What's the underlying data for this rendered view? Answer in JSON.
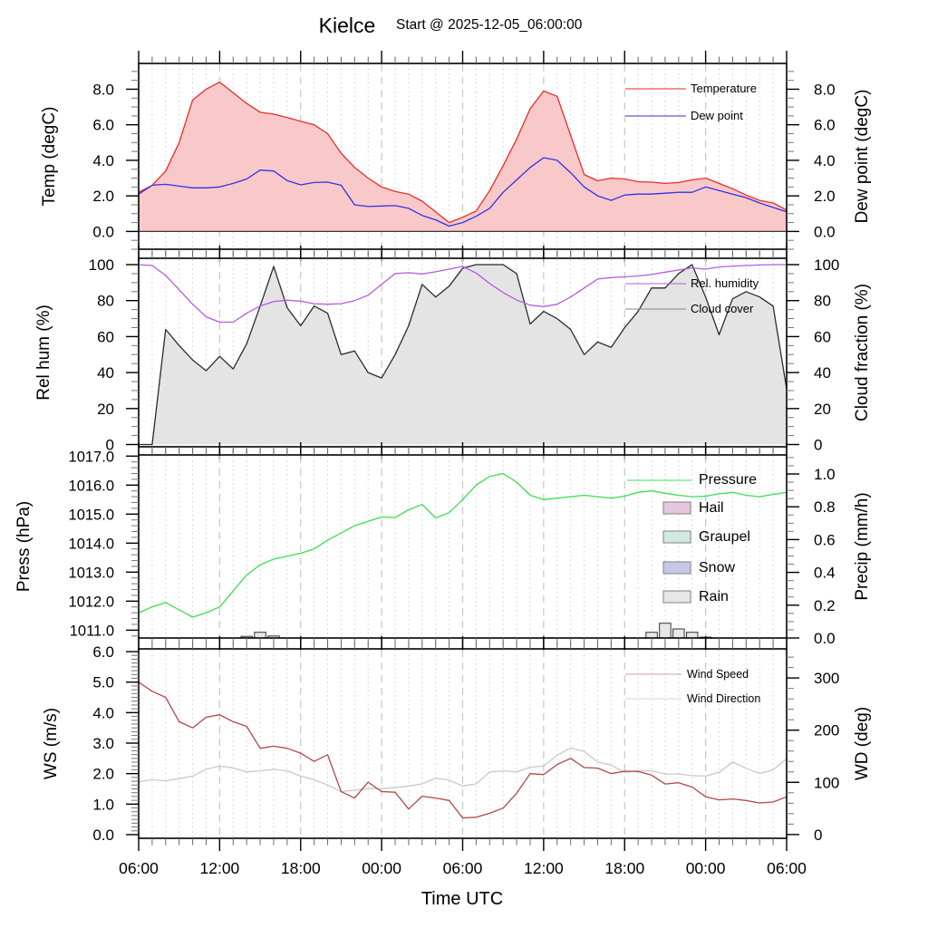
{
  "title": {
    "text": "Kielce",
    "subtitle": "Start @ 2025-12-05_06:00:00"
  },
  "x_axis": {
    "label": "Time UTC",
    "tick_labels": [
      "06:00",
      "12:00",
      "18:00",
      "00:00",
      "06:00",
      "12:00",
      "18:00",
      "00:00",
      "06:00"
    ],
    "total_hours": 48,
    "major_step_h": 6,
    "minor_step_h": 1,
    "grid": "vertical-dashed"
  },
  "chart_data": [
    {
      "panel": "temperature",
      "type": "area",
      "legend_pos": "upper right",
      "left_axis": {
        "title": "Temp (degC)",
        "range": [
          -1.0,
          9.45
        ],
        "majors": [
          0,
          2,
          4,
          6,
          8
        ],
        "labels": [
          "0.0",
          "2.0",
          "4.0",
          "6.0",
          "8.0"
        ],
        "minor_step": 0.5,
        "label_size": 17
      },
      "right_axis": {
        "title": "Dew point (degC)",
        "range": [
          -1.0,
          9.45
        ],
        "majors": [
          0,
          2,
          4,
          6,
          8
        ],
        "labels": [
          "0.0",
          "2.0",
          "4.0",
          "6.0",
          "8.0"
        ],
        "minor_step": 0.5,
        "label_size": 17
      },
      "zero_line": 0,
      "series": [
        {
          "name": "Temperature",
          "axis": "left",
          "color": "#ee2a2a",
          "fill": "#f9c9c9",
          "fill_base": 0,
          "values": [
            2.2,
            2.6,
            3.4,
            5,
            7.4,
            8,
            8.4,
            7.8,
            7.2,
            6.7,
            6.6,
            6.4,
            6.2,
            6,
            5.5,
            4.4,
            3.6,
            3,
            2.5,
            2.25,
            2.1,
            1.7,
            1.1,
            0.5,
            0.8,
            1.15,
            2.3,
            3.7,
            5.2,
            6.9,
            7.9,
            7.6,
            5.4,
            3.2,
            2.85,
            3,
            2.95,
            2.8,
            2.77,
            2.7,
            2.75,
            2.9,
            3,
            2.7,
            2.4,
            2.05,
            1.75,
            1.6,
            1.2
          ]
        },
        {
          "name": "Dew point",
          "axis": "right",
          "color": "#3232e6",
          "values": [
            2.1,
            2.6,
            2.65,
            2.55,
            2.45,
            2.45,
            2.5,
            2.7,
            2.95,
            3.45,
            3.4,
            2.86,
            2.62,
            2.75,
            2.77,
            2.6,
            1.5,
            1.4,
            1.43,
            1.45,
            1.3,
            0.9,
            0.65,
            0.3,
            0.5,
            0.85,
            1.3,
            2.2,
            2.9,
            3.6,
            4.15,
            4,
            3.3,
            2.5,
            2,
            1.75,
            2.05,
            2.1,
            2.1,
            2.15,
            2.2,
            2.2,
            2.5,
            2.3,
            2.1,
            1.9,
            1.6,
            1.35,
            1.1
          ]
        }
      ],
      "legend": [
        {
          "label": "Temperature",
          "swatch": "line",
          "color": "#ee2a2a"
        },
        {
          "label": "Dew point",
          "swatch": "line",
          "color": "#3232e6"
        }
      ]
    },
    {
      "panel": "humidity-cloud",
      "type": "area",
      "legend_pos": "upper right",
      "left_axis": {
        "title": "Rel hum (%)",
        "range": [
          -1.26,
          103.53
        ],
        "majors": [
          0,
          20,
          40,
          60,
          80,
          100
        ],
        "labels": [
          "0",
          "20",
          "40",
          "60",
          "80",
          "100"
        ],
        "minor_step": 5,
        "label_size": 17
      },
      "right_axis": {
        "title": "Cloud fraction (%)",
        "range": [
          -1.26,
          103.53
        ],
        "majors": [
          0,
          20,
          40,
          60,
          80,
          100
        ],
        "labels": [
          "0",
          "20",
          "40",
          "60",
          "80",
          "100"
        ],
        "minor_step": 5,
        "label_size": 17
      },
      "series": [
        {
          "name": "Cloud cover",
          "axis": "right",
          "color": "#2b2b2b",
          "fill": "#e4e4e4",
          "fill_base": 0,
          "values": [
            0,
            0,
            64,
            55,
            47,
            41,
            49,
            42,
            56,
            77,
            99,
            76,
            66,
            77,
            73,
            50,
            52,
            40,
            37,
            50,
            66,
            89,
            82,
            88,
            98,
            100,
            100,
            100,
            95,
            67,
            74,
            70,
            64,
            50,
            57,
            54,
            65,
            74,
            87,
            87,
            95,
            100,
            82,
            61,
            81,
            85,
            82,
            77,
            31
          ]
        },
        {
          "name": "Rel. humidity",
          "axis": "left",
          "color": "#b55ce0",
          "values": [
            100,
            99.5,
            94,
            86,
            78,
            71,
            68,
            68,
            73,
            77,
            79.5,
            80.2,
            79.7,
            78.3,
            78,
            78.3,
            80,
            83,
            89,
            95,
            95.5,
            94.8,
            96,
            97.5,
            99,
            95.3,
            89.5,
            84.5,
            80.3,
            77.5,
            76.7,
            78,
            82,
            87,
            92,
            92.8,
            93.2,
            93.7,
            94.5,
            95.8,
            97,
            98.2,
            97.5,
            98.7,
            99.2,
            99.5,
            99.8,
            100,
            100
          ]
        }
      ],
      "legend": [
        {
          "label": "Rel. humidity",
          "swatch": "line",
          "color": "#b55ce0"
        },
        {
          "label": "Cloud cover",
          "swatch": "line",
          "color": "#8a8a8a"
        }
      ]
    },
    {
      "panel": "pressure-precip",
      "type": "line+bar",
      "legend_pos": "upper right",
      "left_axis": {
        "title": "Press (hPa)",
        "range": [
          1010.73,
          1017.04
        ],
        "majors": [
          1011,
          1012,
          1013,
          1014,
          1015,
          1016,
          1017
        ],
        "labels": [
          "1011.0",
          "1012.0",
          "1013.0",
          "1014.0",
          "1015.0",
          "1016.0",
          "1017.0"
        ],
        "minor_step": 0.2,
        "label_size": 16.5
      },
      "right_axis": {
        "title": "Precip (mm/h)",
        "range": [
          0,
          1.116
        ],
        "majors": [
          0,
          0.2,
          0.4,
          0.6,
          0.8,
          1.0
        ],
        "labels": [
          "0.0",
          "0.2",
          "0.4",
          "0.6",
          "0.8",
          "1.0"
        ],
        "minor_step": 0.05,
        "label_size": 17
      },
      "series": [
        {
          "name": "Pressure",
          "axis": "left",
          "color": "#3ddd50",
          "values": [
            1011.6,
            1011.8,
            1011.95,
            1011.7,
            1011.45,
            1011.6,
            1011.8,
            1012.35,
            1012.9,
            1013.25,
            1013.45,
            1013.55,
            1013.65,
            1013.8,
            1014.1,
            1014.35,
            1014.6,
            1014.75,
            1014.9,
            1014.88,
            1015.15,
            1015.33,
            1014.87,
            1015.05,
            1015.5,
            1016,
            1016.3,
            1016.4,
            1016.1,
            1015.65,
            1015.5,
            1015.55,
            1015.6,
            1015.65,
            1015.6,
            1015.55,
            1015.62,
            1015.75,
            1015.8,
            1015.72,
            1015.65,
            1015.6,
            1015.62,
            1015.7,
            1015.75,
            1015.65,
            1015.6,
            1015.68,
            1015.75
          ]
        }
      ],
      "bars": {
        "name": "Rain",
        "axis": "right",
        "fill": "#e8e8e8",
        "stroke": "#333333",
        "points": [
          {
            "h": 8,
            "v": 0.01
          },
          {
            "h": 9,
            "v": 0.035
          },
          {
            "h": 10,
            "v": 0.012
          },
          {
            "h": 38,
            "v": 0.035
          },
          {
            "h": 39,
            "v": 0.09
          },
          {
            "h": 40,
            "v": 0.055
          },
          {
            "h": 41,
            "v": 0.035
          },
          {
            "h": 42,
            "v": 0.005
          }
        ]
      },
      "legend": [
        {
          "label": "Pressure",
          "swatch": "line",
          "color": "#3ddd50"
        },
        {
          "label": "Hail",
          "swatch": "box",
          "fill": "#e5c7e0"
        },
        {
          "label": "Graupel",
          "swatch": "box",
          "fill": "#d2e8e0"
        },
        {
          "label": "Snow",
          "swatch": "box",
          "fill": "#c6c8e8"
        },
        {
          "label": "Rain",
          "swatch": "box",
          "fill": "#e6e6e6"
        }
      ]
    },
    {
      "panel": "wind",
      "type": "line",
      "legend_pos": "upper right",
      "left_axis": {
        "title": "WS (m/s)",
        "range": [
          -0.12,
          6.09
        ],
        "majors": [
          0,
          1,
          2,
          3,
          4,
          5,
          6
        ],
        "labels": [
          "0.0",
          "1.0",
          "2.0",
          "3.0",
          "4.0",
          "5.0",
          "6.0"
        ],
        "minor_step": 0.125,
        "label_size": 17
      },
      "right_axis": {
        "title": "WD (deg)",
        "range": [
          -7.2,
          355.8
        ],
        "majors": [
          0,
          100,
          200,
          300
        ],
        "labels": [
          "0",
          "100",
          "200",
          "300"
        ],
        "minor_step": 20,
        "label_size": 17
      },
      "series": [
        {
          "name": "Wind Direction",
          "axis": "right",
          "color": "#c9c9c9",
          "values": [
            101,
            105,
            103,
            107,
            112,
            125,
            131,
            128,
            120,
            122,
            125,
            122,
            112,
            105,
            95,
            82,
            85,
            88,
            88,
            90,
            93,
            97,
            108,
            104,
            93,
            97,
            120,
            122,
            120,
            129,
            131,
            152,
            166,
            159,
            139,
            133,
            119,
            122,
            122,
            116,
            116,
            113,
            112,
            119,
            139,
            127,
            117,
            124,
            145
          ]
        },
        {
          "name": "Wind Speed",
          "axis": "left",
          "color": "#b04848",
          "values": [
            5,
            4.7,
            4.5,
            3.7,
            3.5,
            3.85,
            3.93,
            3.7,
            3.55,
            2.83,
            2.9,
            2.83,
            2.67,
            2.4,
            2.62,
            1.41,
            1.2,
            1.72,
            1.41,
            1.39,
            0.84,
            1.26,
            1.2,
            1.12,
            0.55,
            0.57,
            0.7,
            0.87,
            1.36,
            2,
            1.97,
            2.3,
            2.5,
            2.2,
            2.18,
            2,
            2.08,
            2.07,
            1.95,
            1.66,
            1.7,
            1.56,
            1.24,
            1.14,
            1.17,
            1.12,
            1.04,
            1.07,
            1.24
          ]
        }
      ],
      "legend": [
        {
          "label": "Wind Speed",
          "swatch": "line",
          "color": "#cf9d9d"
        },
        {
          "label": "Wind Direction",
          "swatch": "line",
          "color": "#d6d6d6"
        }
      ]
    }
  ]
}
